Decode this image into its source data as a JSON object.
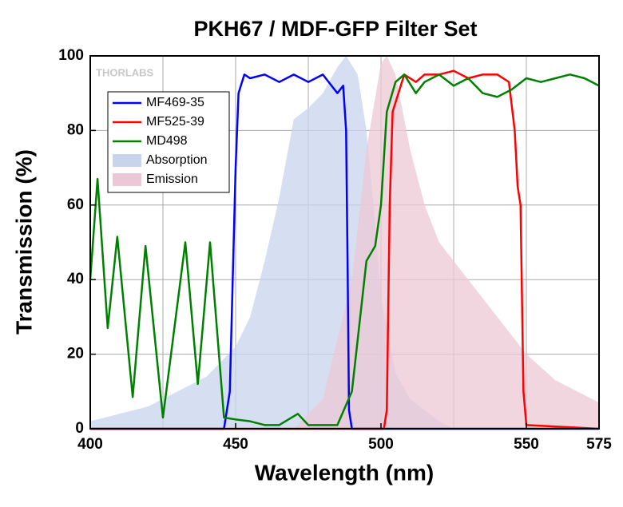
{
  "chart_data": {
    "type": "line",
    "title": "PKH67 / MDF-GFP Filter Set",
    "watermark": "THORLABS",
    "xlabel": "Wavelength (nm)",
    "ylabel": "Transmission (%)",
    "xlim": [
      400,
      575
    ],
    "ylim": [
      0,
      100
    ],
    "xticks": [
      400,
      450,
      500,
      550,
      575
    ],
    "yticks": [
      0,
      20,
      40,
      60,
      80,
      100
    ],
    "grid": true,
    "legend": "upper-left",
    "series": [
      {
        "name": "MF469-35",
        "color": "#0000ff",
        "kind": "line",
        "x": [
          400,
          446,
          448,
          450,
          451,
          453,
          455,
          460,
          465,
          470,
          475,
          480,
          483,
          485,
          487,
          488,
          488.5,
          489,
          490,
          575
        ],
        "values": [
          0,
          0,
          10,
          70,
          90,
          95,
          94,
          95,
          93,
          95,
          93,
          95,
          92,
          90,
          92,
          80,
          45,
          5,
          0,
          0
        ]
      },
      {
        "name": "MF525-39",
        "color": "#ff0000",
        "kind": "line",
        "x": [
          400,
          501,
          502,
          503,
          504,
          506,
          508,
          512,
          515,
          520,
          525,
          530,
          535,
          540,
          544,
          546,
          547,
          548,
          549,
          550,
          575
        ],
        "values": [
          0,
          0,
          5,
          60,
          85,
          90,
          95,
          93,
          95,
          95,
          96,
          94,
          95,
          95,
          93,
          80,
          65,
          60,
          10,
          1,
          0
        ]
      },
      {
        "name": "MD498",
        "color": "#008000",
        "kind": "line",
        "x": [
          400,
          402.5,
          406,
          409.3,
          414.6,
          419,
          425,
          432.7,
          437,
          441.2,
          446,
          450,
          455,
          460,
          465,
          471.4,
          475,
          480,
          485,
          490,
          495,
          498,
          500,
          502,
          505,
          508,
          512,
          515,
          520,
          525,
          530,
          535,
          540,
          545,
          550,
          555,
          560,
          565,
          570,
          575
        ],
        "values": [
          40,
          67,
          27,
          51.5,
          8.5,
          49,
          3,
          50,
          12,
          50,
          3,
          2.5,
          2,
          1,
          1,
          4,
          1,
          1,
          1,
          10,
          45,
          49,
          60,
          85,
          93,
          95,
          90,
          93,
          95,
          92,
          94,
          90,
          89,
          91,
          94,
          93,
          94,
          95,
          94,
          92
        ]
      },
      {
        "name": "Absorption",
        "color": "#c8d4ec",
        "kind": "area",
        "x": [
          400,
          420,
          440,
          450,
          455,
          460,
          465,
          470,
          475,
          480,
          485,
          488,
          492,
          495,
          498,
          500,
          505,
          510,
          520,
          525
        ],
        "values": [
          2,
          6,
          14,
          22,
          30,
          45,
          62,
          83,
          86,
          90,
          97,
          100,
          95,
          80,
          55,
          35,
          15,
          8,
          2,
          0
        ]
      },
      {
        "name": "Emission",
        "color": "#ecc8d6",
        "kind": "area",
        "x": [
          470,
          480,
          490,
          495,
          500,
          502,
          505,
          510,
          515,
          520,
          530,
          540,
          550,
          560,
          575
        ],
        "values": [
          0,
          8,
          40,
          75,
          98,
          100,
          95,
          75,
          60,
          50,
          40,
          30,
          20,
          13,
          7
        ]
      }
    ]
  }
}
